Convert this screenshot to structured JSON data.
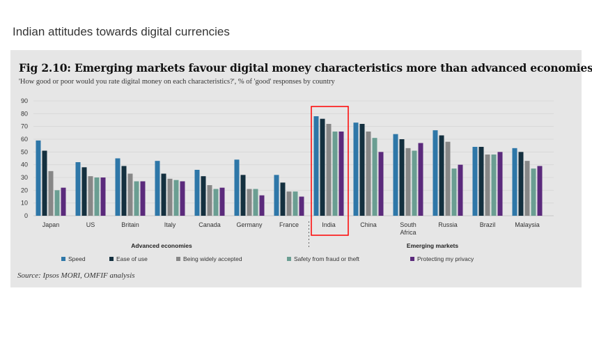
{
  "page_title": "Indian attitudes towards digital currencies",
  "chart_data": {
    "type": "bar",
    "title": "Fig 2.10: Emerging markets favour digital money characteristics more than advanced economies",
    "subtitle": "'How good or poor would you rate digital money on each characteristics?', % of 'good' responses by country",
    "source": "Source: Ipsos MORI, OMFIF analysis",
    "categories": [
      "Japan",
      "US",
      "Britain",
      "Italy",
      "Canada",
      "Germany",
      "France",
      "India",
      "China",
      "South Africa",
      "Russia",
      "Brazil",
      "Malaysia"
    ],
    "groups": [
      {
        "label": "Advanced economies",
        "categories": [
          "Japan",
          "US",
          "Britain",
          "Italy",
          "Canada",
          "Germany",
          "France"
        ]
      },
      {
        "label": "Emerging markets",
        "categories": [
          "India",
          "China",
          "South Africa",
          "Russia",
          "Brazil",
          "Malaysia"
        ]
      }
    ],
    "highlighted_category": "India",
    "ylim": [
      0,
      90
    ],
    "yticks": [
      0,
      10,
      20,
      30,
      40,
      50,
      60,
      70,
      80,
      90
    ],
    "grid": true,
    "legend_position": "bottom",
    "series": [
      {
        "name": "Speed",
        "color": "#2e77a8",
        "values": [
          59,
          42,
          45,
          43,
          36,
          44,
          32,
          78,
          73,
          64,
          67,
          54,
          53
        ]
      },
      {
        "name": "Ease of use",
        "color": "#14303f",
        "values": [
          51,
          38,
          39,
          33,
          31,
          32,
          26,
          76,
          72,
          60,
          63,
          54,
          50
        ]
      },
      {
        "name": "Being widely accepted",
        "color": "#878787",
        "values": [
          35,
          31,
          33,
          29,
          24,
          21,
          19,
          72,
          66,
          53,
          58,
          48,
          43
        ]
      },
      {
        "name": "Safety from fraud or theft",
        "color": "#6a9e92",
        "values": [
          20,
          30,
          27,
          28,
          21,
          21,
          19,
          66,
          61,
          51,
          37,
          48,
          37
        ]
      },
      {
        "name": "Protecting my privacy",
        "color": "#5b2a7c",
        "values": [
          22,
          30,
          27,
          27,
          22,
          16,
          15,
          66,
          50,
          57,
          40,
          50,
          39
        ]
      }
    ],
    "highlight_color": "#ff0000"
  }
}
